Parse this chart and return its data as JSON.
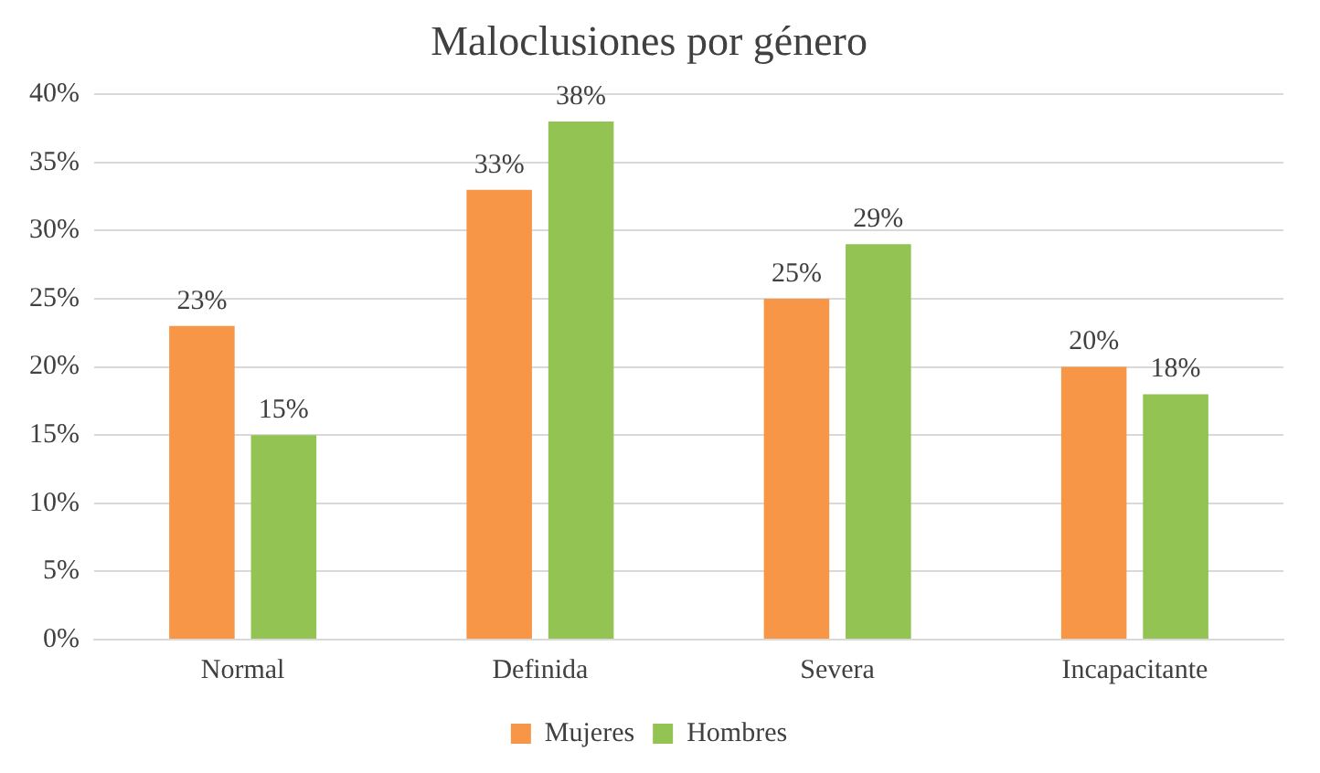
{
  "chart_data": {
    "type": "bar",
    "title": "Maloclusiones por género",
    "categories": [
      "Normal",
      "Definida",
      "Severa",
      "Incapacitante"
    ],
    "series": [
      {
        "name": "Mujeres",
        "color": "#f79646",
        "values": [
          23,
          33,
          25,
          20
        ],
        "value_labels": [
          "23%",
          "33%",
          "25%",
          "20%"
        ]
      },
      {
        "name": "Hombres",
        "color": "#92c353",
        "values": [
          15,
          38,
          29,
          18
        ],
        "value_labels": [
          "15%",
          "38%",
          "29%",
          "18%"
        ]
      }
    ],
    "ylim": [
      0,
      40
    ],
    "yticks": [
      {
        "value": 0,
        "label": "0%"
      },
      {
        "value": 5,
        "label": "5%"
      },
      {
        "value": 10,
        "label": "10%"
      },
      {
        "value": 15,
        "label": "15%"
      },
      {
        "value": 20,
        "label": "20%"
      },
      {
        "value": 25,
        "label": "25%"
      },
      {
        "value": 30,
        "label": "30%"
      },
      {
        "value": 35,
        "label": "35%"
      },
      {
        "value": 40,
        "label": "40%"
      }
    ],
    "grid": "y",
    "legend": "bottom"
  }
}
